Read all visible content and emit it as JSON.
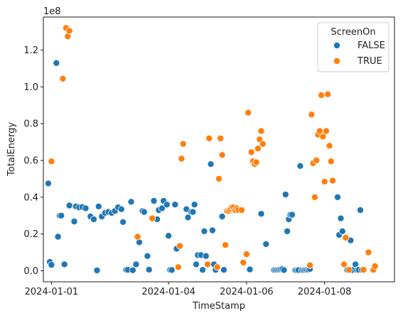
{
  "chart_data": {
    "type": "scatter",
    "xlabel": "TimeStamp",
    "ylabel": "TotalEnergy",
    "y_offset_label": "1e8",
    "xlim": [
      "2023-12-31T19:00",
      "2024-01-09T19:00"
    ],
    "ylim": [
      -6000000,
      138000000
    ],
    "x_ticks": [
      "2024-01-01",
      "2024-01-04",
      "2024-01-06",
      "2024-01-08"
    ],
    "y_ticks": [
      "0.0",
      "0.2",
      "0.4",
      "0.6",
      "0.8",
      "1.0",
      "1.2"
    ],
    "y_tick_values": [
      0,
      20000000,
      40000000,
      60000000,
      80000000,
      100000000,
      120000000
    ],
    "grid": false,
    "legend": {
      "title": "ScreenOn",
      "placement": "top-right"
    },
    "series": [
      {
        "name": "FALSE",
        "color": "#1f77b4",
        "points": [
          [
            "2023-12-31T22:00",
            47500000
          ],
          [
            "2023-12-31T23:00",
            4800000
          ],
          [
            "2024-01-01T00:00",
            3200000
          ],
          [
            "2024-01-01T03:00",
            113000000
          ],
          [
            "2024-01-01T04:00",
            18500000
          ],
          [
            "2024-01-01T05:00",
            30000000
          ],
          [
            "2024-01-01T06:00",
            30000000
          ],
          [
            "2024-01-01T08:00",
            3500000
          ],
          [
            "2024-01-01T11:00",
            35500000
          ],
          [
            "2024-01-01T14:00",
            26800000
          ],
          [
            "2024-01-01T15:00",
            35000000
          ],
          [
            "2024-01-01T17:00",
            34500000
          ],
          [
            "2024-01-01T19:00",
            34700000
          ],
          [
            "2024-01-01T21:00",
            34000000
          ],
          [
            "2024-01-02T00:00",
            29500000
          ],
          [
            "2024-01-02T02:00",
            28000000
          ],
          [
            "2024-01-02T04:00",
            200000
          ],
          [
            "2024-01-02T05:00",
            35000000
          ],
          [
            "2024-01-02T07:00",
            29500000
          ],
          [
            "2024-01-02T09:00",
            31500000
          ],
          [
            "2024-01-02T11:00",
            32000000
          ],
          [
            "2024-01-02T13:00",
            31500000
          ],
          [
            "2024-01-02T15:00",
            32500000
          ],
          [
            "2024-01-02T17:00",
            34500000
          ],
          [
            "2024-01-02T19:00",
            33500000
          ],
          [
            "2024-01-02T20:00",
            26500000
          ],
          [
            "2024-01-02T22:00",
            500000
          ],
          [
            "2024-01-02T23:00",
            500000
          ],
          [
            "2024-01-03T01:00",
            37500000
          ],
          [
            "2024-01-03T02:00",
            300000
          ],
          [
            "2024-01-03T04:00",
            3500000
          ],
          [
            "2024-01-03T06:00",
            15500000
          ],
          [
            "2024-01-03T08:00",
            32500000
          ],
          [
            "2024-01-03T09:00",
            32000000
          ],
          [
            "2024-01-03T11:00",
            8000000
          ],
          [
            "2024-01-03T12:00",
            600000
          ],
          [
            "2024-01-03T15:00",
            38000000
          ],
          [
            "2024-01-03T17:00",
            28000000
          ],
          [
            "2024-01-03T18:00",
            33000000
          ],
          [
            "2024-01-03T20:00",
            34000000
          ],
          [
            "2024-01-03T21:00",
            38000000
          ],
          [
            "2024-01-03T23:00",
            36000000
          ],
          [
            "2024-01-04T00:00",
            19000000
          ],
          [
            "2024-01-04T01:00",
            500000
          ],
          [
            "2024-01-04T02:00",
            400000
          ],
          [
            "2024-01-04T04:00",
            36000000
          ],
          [
            "2024-01-04T05:00",
            12000000
          ],
          [
            "2024-01-04T11:00",
            33500000
          ],
          [
            "2024-01-04T12:00",
            29000000
          ],
          [
            "2024-01-04T14:00",
            32000000
          ],
          [
            "2024-01-04T15:00",
            32000000
          ],
          [
            "2024-01-04T16:00",
            36000000
          ],
          [
            "2024-01-04T17:00",
            3500000
          ],
          [
            "2024-01-04T18:00",
            8500000
          ],
          [
            "2024-01-04T20:00",
            8500000
          ],
          [
            "2024-01-04T21:00",
            500000
          ],
          [
            "2024-01-04T22:00",
            21500000
          ],
          [
            "2024-01-04T23:00",
            8000000
          ],
          [
            "2024-01-05T02:00",
            58000000
          ],
          [
            "2024-01-05T03:00",
            22000000
          ],
          [
            "2024-01-05T04:00",
            3500000
          ],
          [
            "2024-01-05T05:00",
            500000
          ],
          [
            "2024-01-05T09:00",
            29500000
          ],
          [
            "2024-01-05T10:00",
            500000
          ],
          [
            "2024-01-06T02:00",
            700000
          ],
          [
            "2024-01-06T09:00",
            31000000
          ],
          [
            "2024-01-06T12:00",
            14500000
          ],
          [
            "2024-01-06T17:00",
            400000
          ],
          [
            "2024-01-06T18:00",
            400000
          ],
          [
            "2024-01-06T19:00",
            500000
          ],
          [
            "2024-01-06T20:00",
            600000
          ],
          [
            "2024-01-06T21:00",
            700000
          ],
          [
            "2024-01-06T22:00",
            900000
          ],
          [
            "2024-01-06T23:00",
            400000
          ],
          [
            "2024-01-07T00:00",
            41500000
          ],
          [
            "2024-01-07T01:00",
            21500000
          ],
          [
            "2024-01-07T02:00",
            28000000
          ],
          [
            "2024-01-07T03:00",
            30500000
          ],
          [
            "2024-01-07T04:00",
            30500000
          ],
          [
            "2024-01-07T06:00",
            300000
          ],
          [
            "2024-01-07T07:00",
            300000
          ],
          [
            "2024-01-07T08:00",
            400000
          ],
          [
            "2024-01-07T09:00",
            57000000
          ],
          [
            "2024-01-07T10:00",
            300000
          ],
          [
            "2024-01-07T11:00",
            300000
          ],
          [
            "2024-01-07T12:00",
            400000
          ],
          [
            "2024-01-07T13:00",
            500000
          ],
          [
            "2024-01-07T14:00",
            600000
          ],
          [
            "2024-01-07T15:00",
            1000000
          ],
          [
            "2024-01-08T08:00",
            40000000
          ],
          [
            "2024-01-08T09:00",
            19500000
          ],
          [
            "2024-01-08T10:00",
            28500000
          ],
          [
            "2024-01-08T11:00",
            21500000
          ],
          [
            "2024-01-08T14:00",
            400000
          ],
          [
            "2024-01-08T16:00",
            16500000
          ],
          [
            "2024-01-08T17:00",
            400000
          ],
          [
            "2024-01-08T19:00",
            3500000
          ],
          [
            "2024-01-08T20:00",
            400000
          ],
          [
            "2024-01-08T21:00",
            500000
          ],
          [
            "2024-01-08T22:00",
            33000000
          ],
          [
            "2024-01-08T23:00",
            400000
          ]
        ]
      },
      {
        "name": "TRUE",
        "color": "#ff7f0e",
        "points": [
          [
            "2024-01-01T00:00",
            59500000
          ],
          [
            "2024-01-01T07:00",
            104500000
          ],
          [
            "2024-01-01T09:00",
            132000000
          ],
          [
            "2024-01-01T10:00",
            127500000
          ],
          [
            "2024-01-01T11:00",
            130500000
          ],
          [
            "2024-01-03T05:00",
            18500000
          ],
          [
            "2024-01-03T14:00",
            28500000
          ],
          [
            "2024-01-04T06:00",
            2000000
          ],
          [
            "2024-01-04T07:00",
            13500000
          ],
          [
            "2024-01-04T08:00",
            61000000
          ],
          [
            "2024-01-04T09:00",
            69000000
          ],
          [
            "2024-01-05T00:00",
            3500000
          ],
          [
            "2024-01-05T01:00",
            72000000
          ],
          [
            "2024-01-05T06:00",
            2000000
          ],
          [
            "2024-01-05T07:00",
            50000000
          ],
          [
            "2024-01-05T08:00",
            72000000
          ],
          [
            "2024-01-05T09:00",
            63000000
          ],
          [
            "2024-01-05T11:00",
            14000000
          ],
          [
            "2024-01-05T12:00",
            32500000
          ],
          [
            "2024-01-05T13:00",
            32500000
          ],
          [
            "2024-01-05T14:00",
            33500000
          ],
          [
            "2024-01-05T15:00",
            34500000
          ],
          [
            "2024-01-05T16:00",
            34500000
          ],
          [
            "2024-01-05T17:00",
            33000000
          ],
          [
            "2024-01-05T18:00",
            34000000
          ],
          [
            "2024-01-05T19:00",
            33000000
          ],
          [
            "2024-01-05T21:00",
            33000000
          ],
          [
            "2024-01-05T22:00",
            4500000
          ],
          [
            "2024-01-06T00:00",
            9000000
          ],
          [
            "2024-01-06T01:00",
            86000000
          ],
          [
            "2024-01-06T03:00",
            64500000
          ],
          [
            "2024-01-06T04:00",
            59500000
          ],
          [
            "2024-01-06T05:00",
            58000000
          ],
          [
            "2024-01-06T06:00",
            59000000
          ],
          [
            "2024-01-06T07:00",
            66500000
          ],
          [
            "2024-01-06T08:00",
            71500000
          ],
          [
            "2024-01-06T09:00",
            76000000
          ],
          [
            "2024-01-06T10:00",
            69000000
          ],
          [
            "2024-01-07T15:00",
            3000000
          ],
          [
            "2024-01-07T16:00",
            85000000
          ],
          [
            "2024-01-07T17:00",
            58500000
          ],
          [
            "2024-01-07T18:00",
            40000000
          ],
          [
            "2024-01-07T19:00",
            60000000
          ],
          [
            "2024-01-07T20:00",
            74000000
          ],
          [
            "2024-01-07T21:00",
            76000000
          ],
          [
            "2024-01-07T22:00",
            95500000
          ],
          [
            "2024-01-07T23:00",
            73000000
          ],
          [
            "2024-01-08T00:00",
            48500000
          ],
          [
            "2024-01-08T01:00",
            76000000
          ],
          [
            "2024-01-08T02:00",
            96000000
          ],
          [
            "2024-01-08T03:00",
            68000000
          ],
          [
            "2024-01-08T04:00",
            59500000
          ],
          [
            "2024-01-08T05:00",
            49000000
          ],
          [
            "2024-01-08T12:00",
            3500000
          ],
          [
            "2024-01-08T13:00",
            18000000
          ],
          [
            "2024-01-08T15:00",
            500000
          ],
          [
            "2024-01-09T00:00",
            500000
          ],
          [
            "2024-01-09T03:00",
            10000000
          ],
          [
            "2024-01-09T06:00",
            500000
          ],
          [
            "2024-01-09T07:00",
            2500000
          ]
        ]
      }
    ]
  }
}
